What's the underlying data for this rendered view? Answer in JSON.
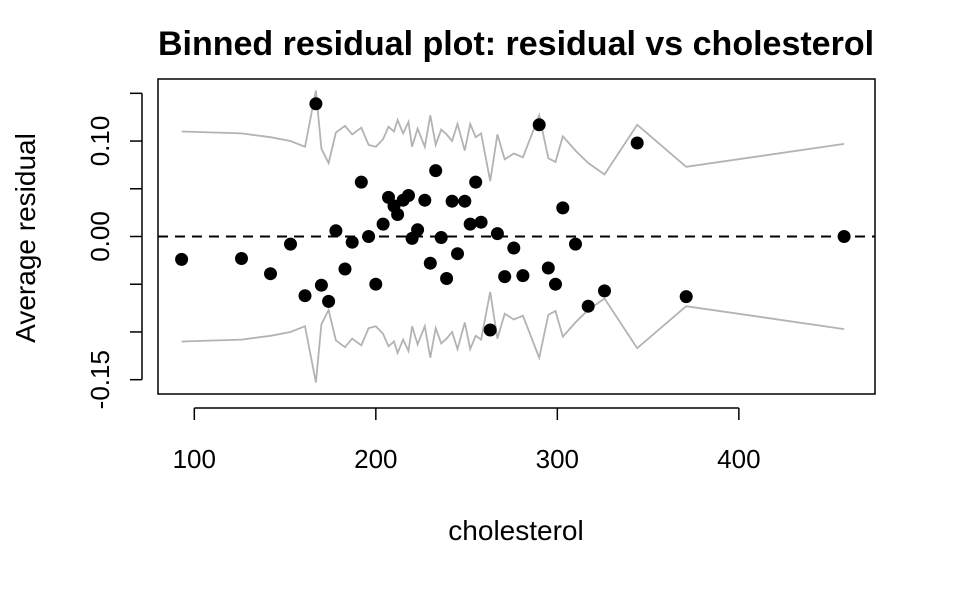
{
  "chart_data": {
    "type": "scatter",
    "title": "Binned residual plot: residual vs cholesterol",
    "xlabel": "cholesterol",
    "ylabel": "Average residual",
    "xlim": [
      80,
      475
    ],
    "ylim": [
      -0.165,
      0.165
    ],
    "x_ticks": [
      100,
      200,
      300,
      400
    ],
    "y_ticks": [
      -0.15,
      -0.1,
      -0.05,
      0.0,
      0.05,
      0.1,
      0.15
    ],
    "y_tick_labels": [
      {
        "value": -0.15,
        "label": "-0.15"
      },
      {
        "value": 0.0,
        "label": "0.00"
      },
      {
        "value": 0.1,
        "label": "0.10"
      }
    ],
    "reference_line": {
      "y": 0.0,
      "style": "dashed",
      "color": "#000000"
    },
    "colors": {
      "points": "#000000",
      "bounds": "#b3b3b3"
    },
    "points": {
      "x": [
        93,
        126,
        142,
        153,
        161,
        167,
        170,
        174,
        178,
        183,
        187,
        192,
        196,
        200,
        204,
        207,
        210,
        212,
        215,
        218,
        220,
        223,
        227,
        230,
        233,
        236,
        239,
        242,
        245,
        249,
        252,
        255,
        258,
        263,
        267,
        271,
        276,
        281,
        290,
        295,
        299,
        303,
        310,
        317,
        326,
        344,
        371,
        458
      ],
      "y": [
        -0.024,
        -0.023,
        -0.039,
        -0.008,
        -0.062,
        0.139,
        -0.051,
        -0.068,
        0.006,
        -0.034,
        -0.006,
        0.057,
        0.0,
        -0.05,
        0.013,
        0.041,
        0.032,
        0.023,
        0.038,
        0.043,
        -0.002,
        0.007,
        0.038,
        -0.028,
        0.069,
        -0.001,
        -0.044,
        0.037,
        -0.018,
        0.037,
        0.013,
        0.057,
        0.015,
        -0.098,
        0.003,
        -0.042,
        -0.012,
        -0.041,
        0.117,
        -0.033,
        -0.05,
        0.03,
        -0.008,
        -0.073,
        -0.057,
        0.098,
        -0.063,
        0.0
      ]
    },
    "upper_bound": {
      "x": [
        93,
        126,
        142,
        153,
        161,
        167,
        170,
        174,
        178,
        183,
        187,
        192,
        196,
        200,
        204,
        207,
        210,
        212,
        215,
        218,
        220,
        223,
        227,
        230,
        233,
        236,
        239,
        242,
        245,
        249,
        252,
        255,
        258,
        263,
        267,
        271,
        276,
        281,
        290,
        295,
        299,
        303,
        310,
        317,
        326,
        344,
        371,
        458
      ],
      "y": [
        0.11,
        0.108,
        0.104,
        0.1,
        0.094,
        0.153,
        0.092,
        0.077,
        0.109,
        0.116,
        0.107,
        0.114,
        0.096,
        0.094,
        0.102,
        0.115,
        0.11,
        0.122,
        0.108,
        0.12,
        0.094,
        0.113,
        0.094,
        0.127,
        0.096,
        0.112,
        0.107,
        0.1,
        0.118,
        0.09,
        0.118,
        0.104,
        0.108,
        0.058,
        0.107,
        0.081,
        0.087,
        0.083,
        0.127,
        0.082,
        0.078,
        0.105,
        0.09,
        0.077,
        0.065,
        0.117,
        0.073,
        0.097
      ]
    },
    "lower_bound": {
      "x": [
        93,
        126,
        142,
        153,
        161,
        167,
        170,
        174,
        178,
        183,
        187,
        192,
        196,
        200,
        204,
        207,
        210,
        212,
        215,
        218,
        220,
        223,
        227,
        230,
        233,
        236,
        239,
        242,
        245,
        249,
        252,
        255,
        258,
        263,
        267,
        271,
        276,
        281,
        290,
        295,
        299,
        303,
        310,
        317,
        326,
        344,
        371,
        458
      ],
      "y": [
        -0.11,
        -0.108,
        -0.104,
        -0.1,
        -0.094,
        -0.153,
        -0.092,
        -0.077,
        -0.109,
        -0.116,
        -0.107,
        -0.114,
        -0.096,
        -0.094,
        -0.102,
        -0.115,
        -0.11,
        -0.122,
        -0.108,
        -0.12,
        -0.094,
        -0.113,
        -0.094,
        -0.127,
        -0.096,
        -0.112,
        -0.107,
        -0.1,
        -0.118,
        -0.09,
        -0.118,
        -0.104,
        -0.108,
        -0.058,
        -0.107,
        -0.081,
        -0.087,
        -0.083,
        -0.127,
        -0.082,
        -0.078,
        -0.105,
        -0.09,
        -0.077,
        -0.065,
        -0.117,
        -0.073,
        -0.097
      ]
    }
  }
}
